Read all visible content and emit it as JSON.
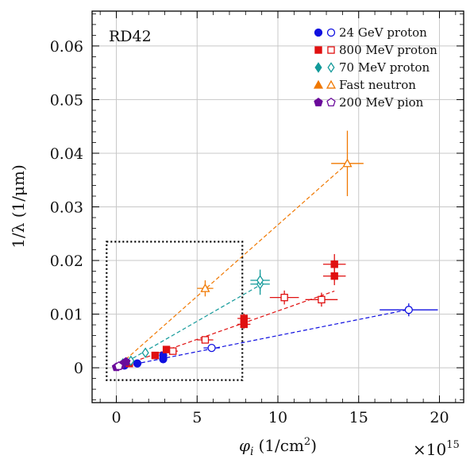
{
  "chart_data": {
    "type": "scatter",
    "title": "",
    "annotation": "RD42",
    "xlabel_symbol": "φ",
    "xlabel_sub": "i",
    "xlabel_unit_prefix": "(1/cm",
    "xlabel_unit_sup": "2",
    "xlabel_unit_suffix": ")",
    "ylabel": "1/λ (1/μm)",
    "x_multiplier_base": "×10",
    "x_multiplier_exp": "15",
    "xlim": [
      -1.5,
      21.5
    ],
    "ylim": [
      -0.0065,
      0.0665
    ],
    "xticks": [
      0,
      5,
      10,
      15,
      20
    ],
    "xtick_labels": [
      "0",
      "5",
      "10",
      "15",
      "20"
    ],
    "yticks": [
      0,
      0.01,
      0.02,
      0.03,
      0.04,
      0.05,
      0.06
    ],
    "ytick_labels": [
      "0",
      "0.01",
      "0.02",
      "0.03",
      "0.04",
      "0.05",
      "0.06"
    ],
    "grid": true,
    "legend_position": "top-right",
    "highlight_box": {
      "x": [
        -0.6,
        7.8
      ],
      "y": [
        -0.0023,
        0.0235
      ]
    },
    "series": [
      {
        "name": "24 GeV proton",
        "color": "#1010e0",
        "marker": "circle",
        "fit_line": [
          [
            0,
            0
          ],
          [
            18.0,
            0.0108
          ]
        ],
        "points": [
          {
            "x": 0.5,
            "y": 0.0004,
            "filled": true
          },
          {
            "x": 1.3,
            "y": 0.0008,
            "filled": true
          },
          {
            "x": 2.9,
            "y": 0.0016,
            "filled": true
          },
          {
            "x": 2.9,
            "y": 0.0023,
            "filled": true
          },
          {
            "x": 5.9,
            "y": 0.0037,
            "filled": false,
            "xerr": 0.5,
            "yerr": 0.0004
          },
          {
            "x": 18.1,
            "y": 0.0108,
            "filled": false,
            "xerr": 1.8,
            "yerr": 0.0012
          }
        ]
      },
      {
        "name": "800 MeV proton",
        "color": "#e01010",
        "marker": "square",
        "fit_line": [
          [
            0,
            0
          ],
          [
            13.5,
            0.0143
          ]
        ],
        "points": [
          {
            "x": 0.8,
            "y": 0.0008,
            "filled": true
          },
          {
            "x": 2.4,
            "y": 0.0023,
            "filled": true
          },
          {
            "x": 3.1,
            "y": 0.0034,
            "filled": true
          },
          {
            "x": 3.5,
            "y": 0.0031,
            "filled": false,
            "xerr": 0.3,
            "yerr": 0.0003
          },
          {
            "x": 5.5,
            "y": 0.0052,
            "filled": false,
            "xerr": 0.5,
            "yerr": 0.0006
          },
          {
            "x": 7.9,
            "y": 0.0081,
            "filled": true,
            "xerr": 0.4,
            "yerr": 0.0008
          },
          {
            "x": 7.9,
            "y": 0.0092,
            "filled": true,
            "xerr": 0.4,
            "yerr": 0.0009
          },
          {
            "x": 10.4,
            "y": 0.0131,
            "filled": false,
            "xerr": 0.9,
            "yerr": 0.0013
          },
          {
            "x": 12.7,
            "y": 0.0127,
            "filled": false,
            "xerr": 1.0,
            "yerr": 0.0013
          },
          {
            "x": 13.5,
            "y": 0.0171,
            "filled": true,
            "xerr": 0.7,
            "yerr": 0.0017
          },
          {
            "x": 13.5,
            "y": 0.0193,
            "filled": true,
            "xerr": 0.7,
            "yerr": 0.0019
          }
        ]
      },
      {
        "name": "70 MeV proton",
        "color": "#139a9a",
        "marker": "diamond",
        "fit_line": [
          [
            0,
            0
          ],
          [
            9.0,
            0.0156
          ]
        ],
        "points": [
          {
            "x": 0.4,
            "y": 0.0008,
            "filled": false
          },
          {
            "x": 0.9,
            "y": 0.0013,
            "filled": false
          },
          {
            "x": 1.8,
            "y": 0.0028,
            "filled": false
          },
          {
            "x": 8.9,
            "y": 0.0156,
            "filled": false,
            "xerr": 0.6,
            "yerr": 0.002
          },
          {
            "x": 8.9,
            "y": 0.0163,
            "filled": false,
            "xerr": 0.6,
            "yerr": 0.002
          }
        ]
      },
      {
        "name": "Fast neutron",
        "color": "#f07800",
        "marker": "triangle",
        "fit_line": [
          [
            0,
            0
          ],
          [
            14.3,
            0.0381
          ]
        ],
        "points": [
          {
            "x": 5.5,
            "y": 0.0148,
            "filled": false,
            "xerr": 0.5,
            "yerr": 0.0015
          },
          {
            "x": 14.3,
            "y": 0.0381,
            "filled": false,
            "xerr": 1.0,
            "yerr": 0.0061
          }
        ]
      },
      {
        "name": "200 MeV pion",
        "color": "#6a0a9a",
        "marker": "pentagon",
        "points": [
          {
            "x": 0.0,
            "y": 0.0001,
            "filled": true
          },
          {
            "x": 0.3,
            "y": 0.0005,
            "filled": true
          },
          {
            "x": 0.6,
            "y": 0.0011,
            "filled": true
          },
          {
            "x": 0.15,
            "y": 0.0003,
            "filled": false
          }
        ]
      }
    ]
  }
}
